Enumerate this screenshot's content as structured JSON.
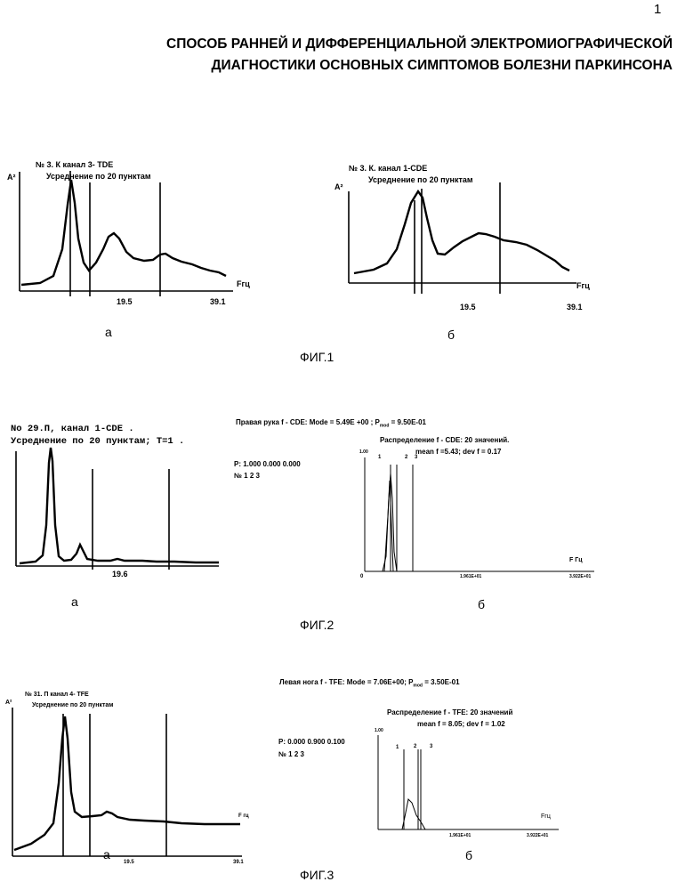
{
  "page_number": "1",
  "title": {
    "line1": "СПОСОБ РАННЕЙ И ДИФФЕРЕНЦИАЛЬНОЙ  ЭЛЕКТРОМИОГРАФИЧЕСКОЙ",
    "line2": "ДИАГНОСТИКИ ОСНОВНЫХ СИМПТОМОВ БОЛЕЗНИ ПАРКИНСОНА"
  },
  "fig1": {
    "caption": "ФИГ.1",
    "a": {
      "label": "а",
      "header1": "№ 3. К  канал  3- TDE",
      "header2": "Усреднение по 20 пунктам",
      "ylabel": "A²",
      "xunit": "Fгц",
      "xticks": [
        "19.5",
        "39.1"
      ]
    },
    "b": {
      "label": "б",
      "header1": "№ 3. К.  канал  1-CDE",
      "header2": "Усреднение по 20 пунктам",
      "ylabel": "A²",
      "xunit": "Fгц",
      "xticks": [
        "19.5",
        "39.1"
      ]
    }
  },
  "fig2": {
    "caption": "ФИГ.2",
    "a": {
      "label": "а",
      "header1": "No    29.П,  канал  1-CDE .",
      "header2": "Усреднение  по  20  пунктам;  T=1 .",
      "xticks": [
        "19.6"
      ]
    },
    "b": {
      "label": "б",
      "header": "Правая рука     f  -  CDE:      Mode = 5.49E +00 ;   P",
      "header_sub": "mod",
      "header_end": " = 9.50E-01",
      "dist": "Распределение  f - CDE:     20  значений.",
      "stats": "mean f =5.43;     dev f = 0.17",
      "p_row": "P:  1.000    0.000   0.000",
      "n_row": "№       1          2          3",
      "ymax": "1.00",
      "peak_labels": [
        "1",
        "2",
        "3"
      ],
      "x0": "0",
      "xticks": [
        "1.961E+01",
        "3.922E+01"
      ],
      "xunit": "F Гц"
    }
  },
  "fig3": {
    "caption": "ФИГ.3",
    "a": {
      "label": "а",
      "header1": "№ 31. П        канал     4- TFE",
      "header2": "Усреднение    по    20  пунктам",
      "ylabel": "A²",
      "xunit": "F гц",
      "xticks": [
        "19.5",
        "39.1"
      ]
    },
    "b": {
      "label": "б",
      "header": "Левая нога     f  -  TFE:       Mode = 7.06E+00;    P",
      "header_sub": "mod",
      "header_end": " = 3.50E-01",
      "dist": "Распределение  f -  TFE:        20   значений",
      "stats": "mean f = 8.05;      dev f = 1.02",
      "p_row": "P: 0.000    0.900    0.100",
      "n_row": "№         1            2           3",
      "ymax": "1.00",
      "peak_labels": [
        "1",
        "2",
        "3"
      ],
      "xticks": [
        "1.961E+01",
        "3.922E+01"
      ],
      "xunit": "Fгц"
    }
  }
}
